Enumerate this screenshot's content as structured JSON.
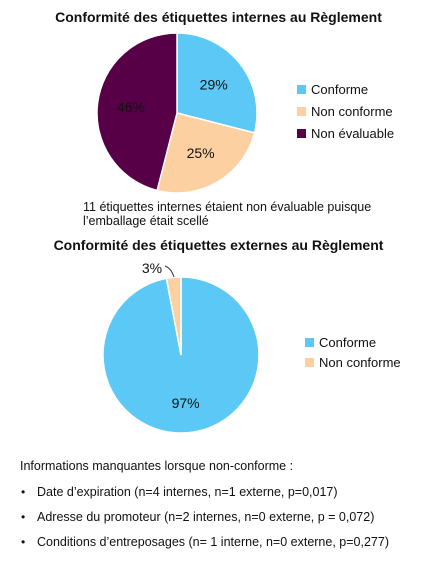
{
  "chart_data": [
    {
      "type": "pie",
      "title": "Conformité des étiquettes internes au Règlement",
      "categories": [
        "Conforme",
        "Non conforme",
        "Non évaluable"
      ],
      "values": [
        29,
        25,
        46
      ],
      "labels": [
        "29%",
        "25%",
        "46%"
      ],
      "colors": [
        "#5bc8f5",
        "#fcd0a1",
        "#570047"
      ],
      "legend_position": "right",
      "note": "11 étiquettes internes étaient non évaluable puisque l’emballage était scellé"
    },
    {
      "type": "pie",
      "title": "Conformité des étiquettes externes au Règlement",
      "categories": [
        "Conforme",
        "Non conforme"
      ],
      "values": [
        97,
        3
      ],
      "labels": [
        "97%",
        "3%"
      ],
      "colors": [
        "#5bc8f5",
        "#fcd0a1"
      ],
      "legend_position": "right"
    }
  ],
  "missing_info": {
    "heading": "Informations manquantes lorsque non-conforme :",
    "bullet": "•",
    "items": [
      "Date d’expiration (n=4 internes, n=1 externe, p=0,017)",
      "Adresse du promoteur (n=2 internes, n=0 externe, p = 0,072)",
      "Conditions d’entreposages (n= 1 interne, n=0 externe, p=0,277)"
    ]
  }
}
